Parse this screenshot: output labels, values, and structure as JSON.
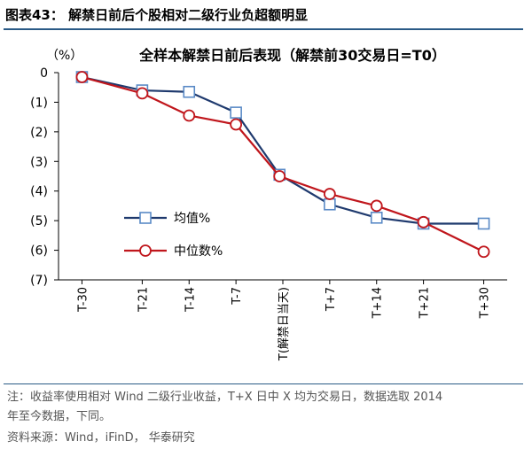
{
  "figure": {
    "title": "图表43：  解禁日前后个股相对二级行业负超额明显"
  },
  "chart_data": {
    "type": "line",
    "title": "全样本解禁日前后表现（解禁前30交易日=T0）",
    "ylabel": "（%）",
    "xlabel": "",
    "categories": [
      "T-30",
      "T-21",
      "T-14",
      "T-7",
      "T(解禁日当天)",
      "T+7",
      "T+14",
      "T+21",
      "T+30"
    ],
    "x_pos": [
      -30,
      -21,
      -14,
      -7,
      0,
      7,
      14,
      21,
      30
    ],
    "ylim": [
      -7,
      0
    ],
    "yticks": [
      0,
      -1,
      -2,
      -3,
      -4,
      -5,
      -6,
      -7
    ],
    "ytick_labels": [
      "0",
      "(1)",
      "(2)",
      "(3)",
      "(4)",
      "(5)",
      "(6)",
      "(7)"
    ],
    "grid": false,
    "legend_position": "center-left",
    "series": [
      {
        "name": "均值%",
        "color": "#1f3a6e",
        "marker": "square",
        "x": [
          -30,
          -21,
          -14,
          -7,
          -0.5,
          7,
          14,
          21,
          30
        ],
        "values": [
          -0.15,
          -0.6,
          -0.65,
          -1.35,
          -3.45,
          -4.45,
          -4.9,
          -5.1,
          -5.1
        ]
      },
      {
        "name": "中位数%",
        "color": "#c0161c",
        "marker": "circle",
        "x": [
          -30,
          -21,
          -14,
          -7,
          -0.5,
          7,
          14,
          21,
          30
        ],
        "values": [
          -0.15,
          -0.7,
          -1.45,
          -1.75,
          -3.5,
          -4.1,
          -4.5,
          -5.05,
          -6.05
        ]
      }
    ]
  },
  "notes": {
    "line1": "注：收益率使用相对 Wind 二级行业收益，T+X 日中 X 均为交易日，数据选取 2014",
    "line2": "年至今数据，下同。",
    "source": "资料来源：Wind，iFinD， 华泰研究"
  }
}
